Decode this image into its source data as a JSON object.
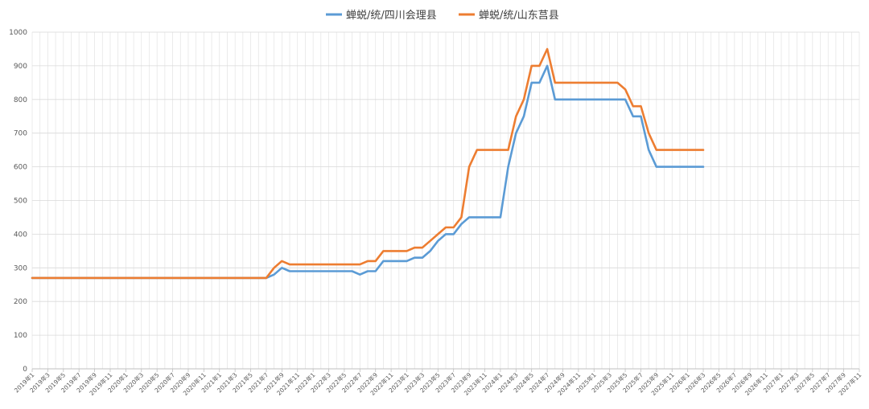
{
  "chart_data": {
    "type": "line",
    "title": "",
    "xlabel": "",
    "ylabel": "",
    "ylim": [
      0,
      1000
    ],
    "yticks": [
      0,
      100,
      200,
      300,
      400,
      500,
      600,
      700,
      800,
      900,
      1000
    ],
    "grid": true,
    "legend_position": "top",
    "x_tick_labels": [
      "2019年1",
      "2019年3",
      "2019年5",
      "2019年7",
      "2019年9",
      "2019年11",
      "2020年1",
      "2020年3",
      "2020年5",
      "2020年7",
      "2020年9",
      "2020年11",
      "2021年1",
      "2021年3",
      "2021年5",
      "2021年7",
      "2021年9",
      "2021年11",
      "2022年1",
      "2022年3",
      "2022年5",
      "2022年7",
      "2022年9",
      "2022年11",
      "2023年1",
      "2023年3",
      "2023年5",
      "2023年7",
      "2023年9",
      "2023年11",
      "2024年1",
      "2024年3",
      "2024年5",
      "2024年7",
      "2024年9",
      "2024年11",
      "2025年1",
      "2025年3",
      "2025年5",
      "2025年7",
      "2025年9",
      "2025年11",
      "2026年1",
      "2026年3",
      "2026年5",
      "2026年7",
      "2026年9",
      "2026年11",
      "2027年1",
      "2027年3",
      "2027年5",
      "2027年7",
      "2027年9",
      "2027年11"
    ],
    "series": [
      {
        "name": "蝉蜕/统/四川会理县",
        "color": "#5B9BD5",
        "points": [
          [
            "2019-01",
            270
          ],
          [
            "2021-07",
            270
          ],
          [
            "2021-08",
            280
          ],
          [
            "2021-09",
            300
          ],
          [
            "2021-10",
            290
          ],
          [
            "2022-06",
            290
          ],
          [
            "2022-07",
            280
          ],
          [
            "2022-08",
            290
          ],
          [
            "2022-09",
            290
          ],
          [
            "2022-10",
            320
          ],
          [
            "2022-12",
            320
          ],
          [
            "2023-01",
            320
          ],
          [
            "2023-02",
            330
          ],
          [
            "2023-03",
            330
          ],
          [
            "2023-04",
            350
          ],
          [
            "2023-05",
            380
          ],
          [
            "2023-06",
            400
          ],
          [
            "2023-07",
            400
          ],
          [
            "2023-08",
            430
          ],
          [
            "2023-09",
            450
          ],
          [
            "2024-01",
            450
          ],
          [
            "2024-02",
            600
          ],
          [
            "2024-03",
            700
          ],
          [
            "2024-04",
            750
          ],
          [
            "2024-05",
            850
          ],
          [
            "2024-06",
            850
          ],
          [
            "2024-07",
            900
          ],
          [
            "2024-08",
            800
          ],
          [
            "2025-05",
            800
          ],
          [
            "2025-06",
            750
          ],
          [
            "2025-07",
            750
          ],
          [
            "2025-08",
            650
          ],
          [
            "2025-09",
            600
          ],
          [
            "2026-03",
            600
          ]
        ]
      },
      {
        "name": "蝉蜕/统/山东莒县",
        "color": "#ED7D31",
        "points": [
          [
            "2019-01",
            270
          ],
          [
            "2021-07",
            270
          ],
          [
            "2021-08",
            300
          ],
          [
            "2021-09",
            320
          ],
          [
            "2021-10",
            310
          ],
          [
            "2022-07",
            310
          ],
          [
            "2022-08",
            320
          ],
          [
            "2022-09",
            320
          ],
          [
            "2022-10",
            350
          ],
          [
            "2022-12",
            350
          ],
          [
            "2023-01",
            350
          ],
          [
            "2023-02",
            360
          ],
          [
            "2023-03",
            360
          ],
          [
            "2023-04",
            380
          ],
          [
            "2023-05",
            400
          ],
          [
            "2023-06",
            420
          ],
          [
            "2023-07",
            420
          ],
          [
            "2023-08",
            450
          ],
          [
            "2023-09",
            600
          ],
          [
            "2023-10",
            650
          ],
          [
            "2024-02",
            650
          ],
          [
            "2024-03",
            750
          ],
          [
            "2024-04",
            800
          ],
          [
            "2024-05",
            900
          ],
          [
            "2024-06",
            900
          ],
          [
            "2024-07",
            950
          ],
          [
            "2024-08",
            850
          ],
          [
            "2025-04",
            850
          ],
          [
            "2025-05",
            830
          ],
          [
            "2025-06",
            780
          ],
          [
            "2025-07",
            780
          ],
          [
            "2025-08",
            700
          ],
          [
            "2025-09",
            650
          ],
          [
            "2026-03",
            650
          ]
        ]
      }
    ]
  }
}
